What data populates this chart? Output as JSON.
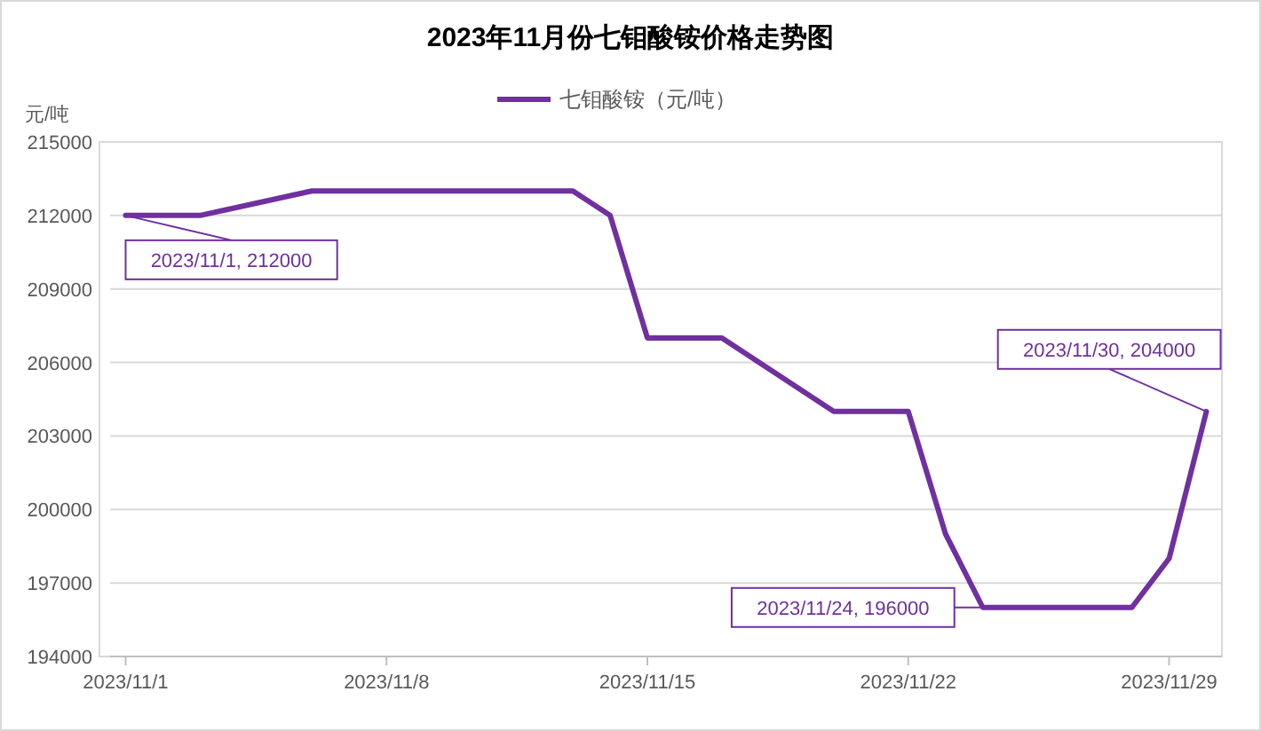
{
  "chart_data": {
    "type": "line",
    "title": "2023年11月份七钼酸铵价格走势图",
    "ylabel": "元/吨",
    "x": [
      "2023-11-01",
      "2023-11-03",
      "2023-11-06",
      "2023-11-13",
      "2023-11-14",
      "2023-11-15",
      "2023-11-17",
      "2023-11-20",
      "2023-11-22",
      "2023-11-23",
      "2023-11-24",
      "2023-11-28",
      "2023-11-29",
      "2023-11-30"
    ],
    "series": [
      {
        "name": "七钼酸铵（元/吨）",
        "color": "#7030a0",
        "values": [
          212000,
          212000,
          213000,
          213000,
          212000,
          207000,
          207000,
          204000,
          204000,
          199000,
          196000,
          196000,
          198000,
          204000
        ]
      }
    ],
    "xlim": [
      "2023-10-31T14:00",
      "2023-11-30T10:00"
    ],
    "xticks": [
      {
        "value": "2023-11-01",
        "label": "2023/11/1"
      },
      {
        "value": "2023-11-08",
        "label": "2023/11/8"
      },
      {
        "value": "2023-11-15",
        "label": "2023/11/15"
      },
      {
        "value": "2023-11-22",
        "label": "2023/11/22"
      },
      {
        "value": "2023-11-29",
        "label": "2023/11/29"
      }
    ],
    "ylim": [
      194000,
      215000
    ],
    "yticks": [
      194000,
      197000,
      200000,
      203000,
      206000,
      209000,
      212000,
      215000
    ],
    "grid": "y",
    "legend": "top",
    "marker": "none",
    "line_style": "solid",
    "annotations": [
      {
        "text": "2023/11/1, 212000",
        "x": "2023-11-01",
        "y": 212000
      },
      {
        "text": "2023/11/24, 196000",
        "x": "2023-11-24",
        "y": 196000
      },
      {
        "text": "2023/11/30, 204000",
        "x": "2023-11-30",
        "y": 204000
      }
    ]
  }
}
